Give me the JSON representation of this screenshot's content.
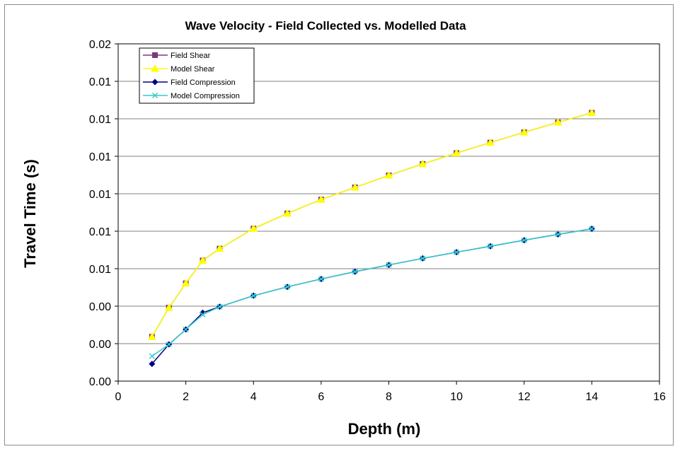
{
  "chart_data": {
    "type": "line",
    "title": "Wave Velocity - Field Collected vs. Modelled Data",
    "xlabel": "Depth (m)",
    "ylabel": "Travel Time (s)",
    "xlim": [
      0,
      16
    ],
    "ylim": [
      0,
      0.018
    ],
    "x_ticks": [
      0,
      2,
      4,
      6,
      8,
      10,
      12,
      14,
      16
    ],
    "x_tick_labels": [
      "0",
      "2",
      "4",
      "6",
      "8",
      "10",
      "12",
      "14",
      "16"
    ],
    "y_ticks": [
      0,
      0.002,
      0.004,
      0.006,
      0.008,
      0.01,
      0.012,
      0.014,
      0.016,
      0.018
    ],
    "y_tick_labels": [
      "0.00",
      "0.00",
      "0.00",
      "0.01",
      "0.01",
      "0.01",
      "0.01",
      "0.01",
      "0.01",
      "0.02"
    ],
    "grid": "horizontal",
    "legend_position": "top-left",
    "series": [
      {
        "name": "Field Shear",
        "color": "#7a3a78",
        "marker": "square",
        "x": [
          1,
          1.5,
          2,
          2.5,
          3,
          4,
          5,
          6,
          7,
          8,
          9,
          10,
          11,
          12,
          13,
          14
        ],
        "y": [
          0.00237,
          0.00392,
          0.00522,
          0.00644,
          0.00707,
          0.00814,
          0.00895,
          0.00969,
          0.01034,
          0.01098,
          0.01159,
          0.01217,
          0.01273,
          0.01328,
          0.01381,
          0.01432
        ]
      },
      {
        "name": "Model Shear",
        "color": "#ffff00",
        "marker": "triangle",
        "x": [
          1,
          1.5,
          2,
          2.5,
          3,
          4,
          5,
          6,
          7,
          8,
          9,
          10,
          11,
          12,
          13,
          14
        ],
        "y": [
          0.00237,
          0.00392,
          0.00522,
          0.00644,
          0.00707,
          0.00814,
          0.00895,
          0.00969,
          0.01034,
          0.01098,
          0.01159,
          0.01217,
          0.01273,
          0.01328,
          0.01381,
          0.01432
        ]
      },
      {
        "name": "Field Compression",
        "color": "#000080",
        "marker": "diamond",
        "x": [
          1,
          1.5,
          2,
          2.5,
          3,
          4,
          5,
          6,
          7,
          8,
          9,
          10,
          11,
          12,
          13,
          14
        ],
        "y": [
          0.00092,
          0.00196,
          0.00276,
          0.00365,
          0.00397,
          0.00456,
          0.00503,
          0.00545,
          0.00584,
          0.0062,
          0.00655,
          0.00688,
          0.0072,
          0.00752,
          0.00783,
          0.00813
        ]
      },
      {
        "name": "Model Compression",
        "color": "#33cccc",
        "marker": "x",
        "x": [
          1,
          1.5,
          2,
          2.5,
          3,
          4,
          5,
          6,
          7,
          8,
          9,
          10,
          11,
          12,
          13,
          14
        ],
        "y": [
          0.00133,
          0.00196,
          0.00276,
          0.00355,
          0.00397,
          0.00456,
          0.00503,
          0.00545,
          0.00584,
          0.0062,
          0.00655,
          0.00688,
          0.0072,
          0.00752,
          0.00783,
          0.00813
        ]
      }
    ]
  }
}
